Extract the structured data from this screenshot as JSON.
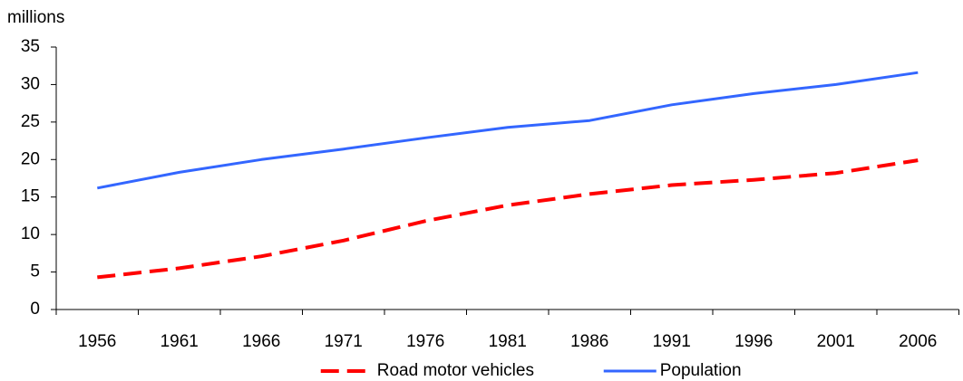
{
  "chart_data": {
    "type": "line",
    "y_label": "millions",
    "categories": [
      "1956",
      "1961",
      "1966",
      "1971",
      "1976",
      "1981",
      "1986",
      "1991",
      "1996",
      "2001",
      "2006"
    ],
    "series": [
      {
        "name": "Road motor vehicles",
        "color": "#ff0000",
        "dashed": true,
        "values": [
          4.3,
          5.5,
          7.1,
          9.2,
          11.8,
          13.9,
          15.4,
          16.6,
          17.3,
          18.2,
          19.9
        ]
      },
      {
        "name": "Population",
        "color": "#3366ff",
        "dashed": false,
        "values": [
          16.2,
          18.3,
          20.0,
          21.4,
          22.9,
          24.3,
          25.2,
          27.3,
          28.8,
          30.0,
          31.6
        ]
      }
    ],
    "ylim": [
      0,
      35
    ],
    "yticks": [
      0,
      5,
      10,
      15,
      20,
      25,
      30,
      35
    ],
    "legend": "bottom"
  }
}
